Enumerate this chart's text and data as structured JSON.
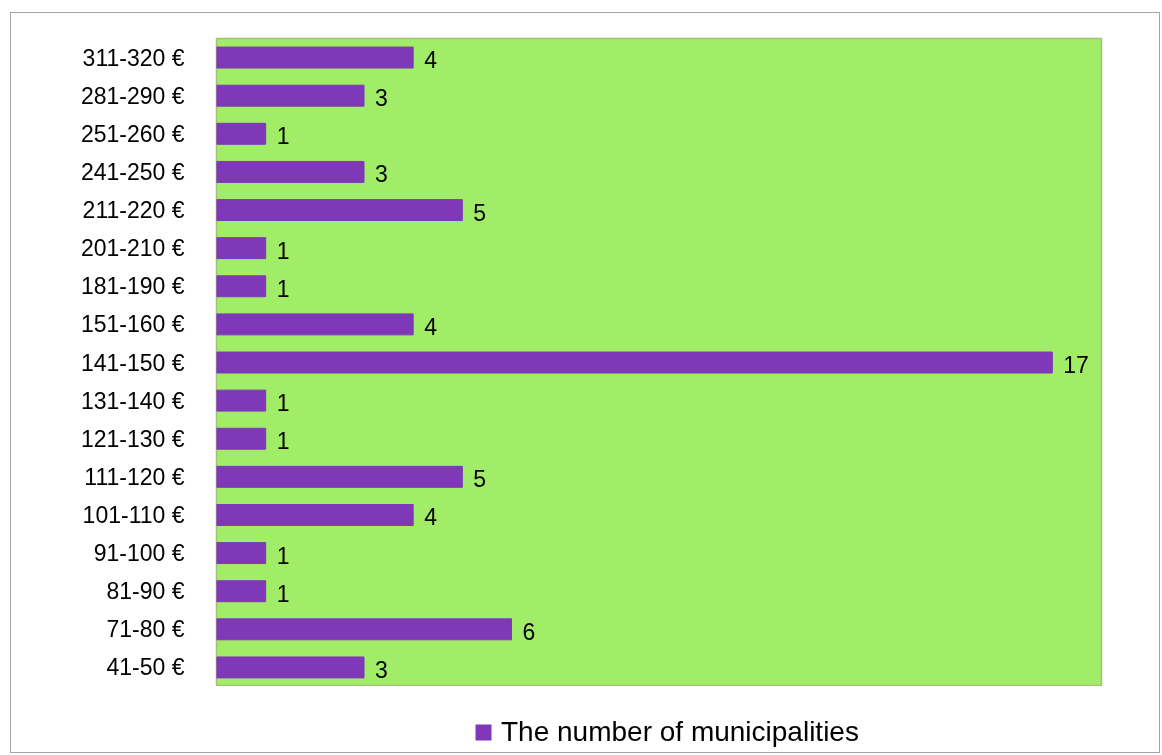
{
  "chart_data": {
    "type": "bar",
    "orientation": "horizontal",
    "categories": [
      "311-320 €",
      "281-290 €",
      "251-260 €",
      "241-250 €",
      "211-220 €",
      "201-210 €",
      "181-190 €",
      "151-160 €",
      "141-150 €",
      "131-140 €",
      "121-130 €",
      "111-120 €",
      "101-110 €",
      "91-100 €",
      "81-90 €",
      "71-80 €",
      "41-50 €"
    ],
    "series": [
      {
        "name": "The number of municipalities",
        "color": "#7f38b8",
        "values": [
          4,
          3,
          1,
          3,
          5,
          1,
          1,
          4,
          17,
          1,
          1,
          5,
          4,
          1,
          1,
          6,
          3
        ]
      }
    ],
    "xlim": [
      0,
      18
    ],
    "data_labels": true,
    "legend": "bottom",
    "tick_labels": "y"
  }
}
